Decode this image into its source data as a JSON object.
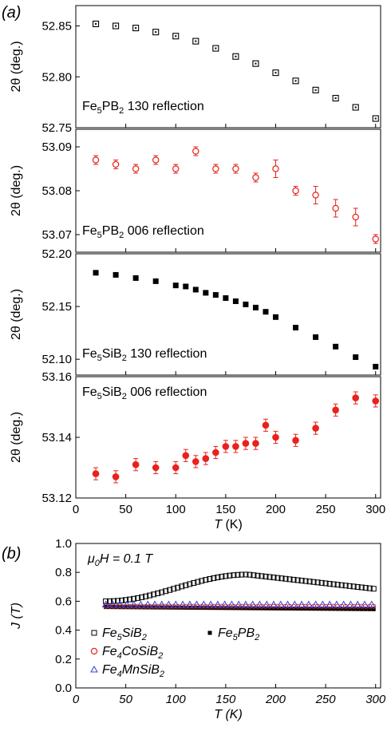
{
  "labels": {
    "a": "(a)",
    "b": "(b)"
  },
  "chart_data": [
    {
      "type": "scatter",
      "panel": "a1",
      "ylabel": "2θ (deg.)",
      "annotation": {
        "base": "Fe",
        "sub1": "5",
        "mid": "PB",
        "sub2": "2",
        "rest": " 130 reflection"
      },
      "xlim": [
        0,
        305
      ],
      "ylim": [
        52.75,
        52.87
      ],
      "yticks": [
        "52.85",
        "52.80",
        "52.75"
      ],
      "ytick_values": [
        52.85,
        52.8,
        52.75
      ],
      "marker": "open-square-dot",
      "color": "#000000",
      "x": [
        20,
        40,
        60,
        80,
        100,
        120,
        140,
        160,
        180,
        200,
        220,
        240,
        260,
        280,
        300
      ],
      "y": [
        52.852,
        52.85,
        52.848,
        52.844,
        52.84,
        52.835,
        52.828,
        52.82,
        52.813,
        52.804,
        52.796,
        52.787,
        52.779,
        52.77,
        52.759
      ]
    },
    {
      "type": "scatter",
      "panel": "a2",
      "ylabel": "2θ (deg.)",
      "annotation": {
        "base": "Fe",
        "sub1": "5",
        "mid": "PB",
        "sub2": "2",
        "rest": " 006 reflection"
      },
      "xlim": [
        0,
        305
      ],
      "ylim": [
        53.066,
        53.094
      ],
      "yticks": [
        "53.09",
        "53.08",
        "53.07"
      ],
      "ytick_values": [
        53.09,
        53.08,
        53.07
      ],
      "marker": "open-circle",
      "color": "#e8221c",
      "x": [
        20,
        40,
        60,
        80,
        100,
        120,
        140,
        160,
        180,
        200,
        220,
        240,
        260,
        280,
        300
      ],
      "y": [
        53.087,
        53.086,
        53.085,
        53.087,
        53.085,
        53.089,
        53.085,
        53.085,
        53.083,
        53.085,
        53.08,
        53.079,
        53.076,
        53.074,
        53.069
      ],
      "err": [
        0.001,
        0.001,
        0.001,
        0.001,
        0.001,
        0.001,
        0.001,
        0.001,
        0.001,
        0.002,
        0.001,
        0.002,
        0.002,
        0.002,
        0.001
      ]
    },
    {
      "type": "scatter",
      "panel": "a3",
      "ylabel": "2θ (deg.)",
      "annotation": {
        "base": "Fe",
        "sub1": "5",
        "mid": "SiB",
        "sub2": "2",
        "rest": " 130 reflection"
      },
      "xlim": [
        0,
        305
      ],
      "ylim": [
        52.085,
        52.2
      ],
      "yticks": [
        "52.20",
        "52.15",
        "52.10"
      ],
      "ytick_values": [
        52.2,
        52.15,
        52.1
      ],
      "marker": "filled-square",
      "color": "#000000",
      "x": [
        20,
        40,
        60,
        80,
        100,
        110,
        120,
        130,
        140,
        150,
        160,
        170,
        180,
        190,
        200,
        220,
        240,
        260,
        280,
        300
      ],
      "y": [
        52.182,
        52.18,
        52.177,
        52.174,
        52.17,
        52.169,
        52.166,
        52.163,
        52.161,
        52.158,
        52.155,
        52.152,
        52.149,
        52.145,
        52.14,
        52.13,
        52.121,
        52.112,
        52.102,
        52.093
      ]
    },
    {
      "type": "scatter",
      "panel": "a4",
      "ylabel": "2θ (deg.)",
      "xlabel_italic": "T",
      "xlabel_rest": " (K)",
      "annotation": {
        "base": "Fe",
        "sub1": "5",
        "mid": "SiB",
        "sub2": "2",
        "rest": " 006 reflection"
      },
      "xlim": [
        0,
        305
      ],
      "xticks": [
        0,
        50,
        100,
        150,
        200,
        250,
        300
      ],
      "ylim": [
        53.12,
        53.16
      ],
      "yticks": [
        "53.16",
        "53.14",
        "53.12"
      ],
      "ytick_values": [
        53.16,
        53.14,
        53.12
      ],
      "marker": "filled-circle",
      "color": "#e8221c",
      "x": [
        20,
        40,
        60,
        80,
        100,
        110,
        120,
        130,
        140,
        150,
        160,
        170,
        180,
        190,
        200,
        220,
        240,
        260,
        280,
        300
      ],
      "y": [
        53.128,
        53.127,
        53.131,
        53.13,
        53.13,
        53.134,
        53.132,
        53.133,
        53.135,
        53.137,
        53.137,
        53.138,
        53.138,
        53.144,
        53.14,
        53.139,
        53.143,
        53.149,
        53.153,
        53.152
      ],
      "err": [
        0.002,
        0.002,
        0.002,
        0.002,
        0.002,
        0.002,
        0.002,
        0.002,
        0.002,
        0.002,
        0.002,
        0.002,
        0.002,
        0.002,
        0.002,
        0.002,
        0.002,
        0.002,
        0.002,
        0.002
      ]
    },
    {
      "type": "scatter",
      "panel": "b",
      "ylabel_italic": "J",
      "ylabel_rest": " (T)",
      "xlabel_italic": "T",
      "xlabel_rest": " (K)",
      "field": {
        "mu": "μ",
        "sub": "0",
        "rest": "H = 0.1 T"
      },
      "xlim": [
        0,
        305
      ],
      "xticks": [
        0,
        50,
        100,
        150,
        200,
        250,
        300
      ],
      "ylim": [
        0,
        1.0
      ],
      "yticks": [
        "1.0",
        "0.8",
        "0.6",
        "0.4",
        "0.2",
        "0.0"
      ],
      "ytick_values": [
        1.0,
        0.8,
        0.6,
        0.4,
        0.2,
        0.0
      ],
      "series": [
        {
          "base": "Fe",
          "s1": "5",
          "mid": "SiB",
          "s2": "2",
          "marker": "open-square",
          "color": "#000000"
        },
        {
          "base": "Fe",
          "s1": "5",
          "mid": "PB",
          "s2": "2",
          "marker": "filled-square",
          "color": "#000000"
        },
        {
          "base": "Fe",
          "s1": "4",
          "mid": "CoSiB",
          "s2": "2",
          "marker": "open-circle",
          "color": "#e8221c"
        },
        {
          "base": "Fe",
          "s1": "4",
          "mid": "MnSiB",
          "s2": "2",
          "marker": "open-triangle",
          "color": "#3340d8"
        }
      ]
    }
  ]
}
